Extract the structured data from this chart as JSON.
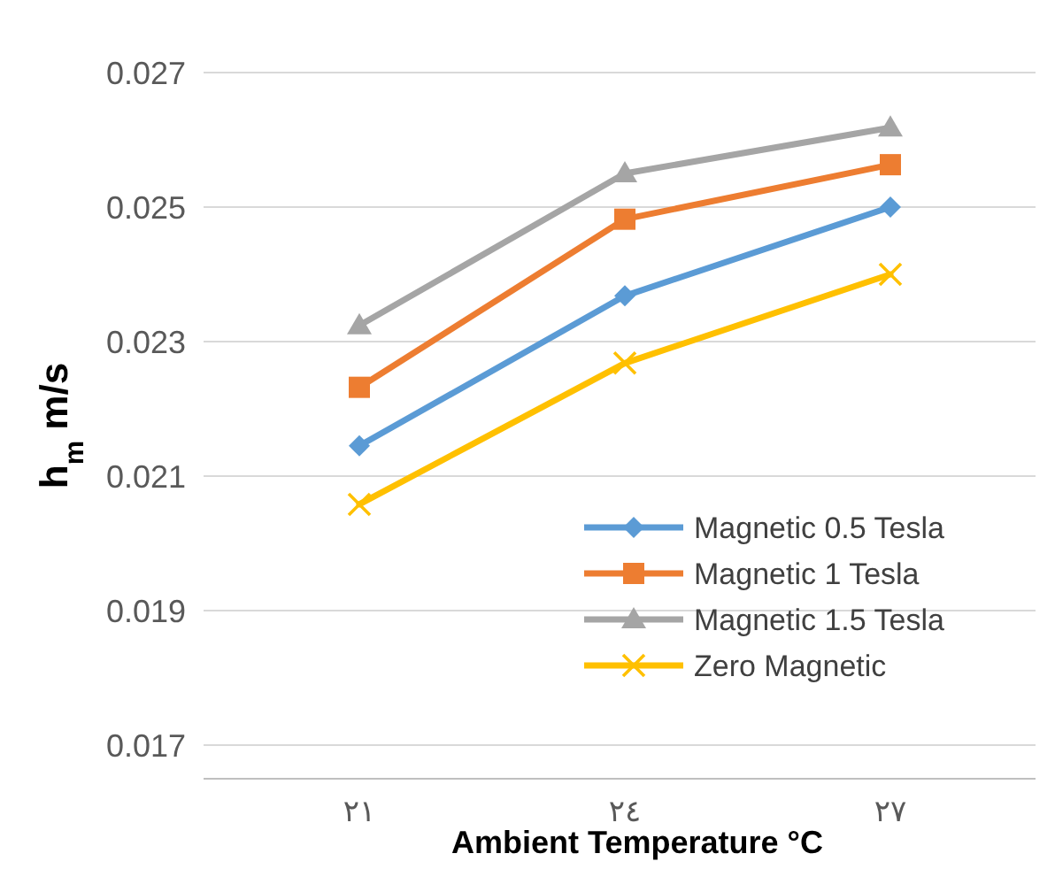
{
  "chart_data": {
    "type": "line",
    "xlabel": "Ambient Temperature °C",
    "ylabel": "h$_{m}$ m/s",
    "categories": [
      "٢١",
      "٢٤",
      "٢٧"
    ],
    "series": [
      {
        "name": "Magnetic 0.5 Tesla",
        "color": "#5b9bd5",
        "marker": "diamond",
        "values": [
          0.02145,
          0.02368,
          0.025
        ]
      },
      {
        "name": "Magnetic 1 Tesla",
        "color": "#ed7d31",
        "marker": "square",
        "values": [
          0.02232,
          0.02482,
          0.02563
        ]
      },
      {
        "name": "Magnetic 1.5 Tesla",
        "color": "#a5a5a5",
        "marker": "triangle",
        "values": [
          0.02324,
          0.0255,
          0.02618
        ]
      },
      {
        "name": "Zero Magnetic",
        "color": "#ffc000",
        "marker": "cross",
        "values": [
          0.02058,
          0.02268,
          0.024
        ]
      }
    ],
    "ylim": [
      0.0165,
      0.027
    ],
    "yticks": [
      0.017,
      0.019,
      0.021,
      0.023,
      0.025,
      0.027
    ],
    "grid": "y",
    "legend": "bottom right"
  }
}
